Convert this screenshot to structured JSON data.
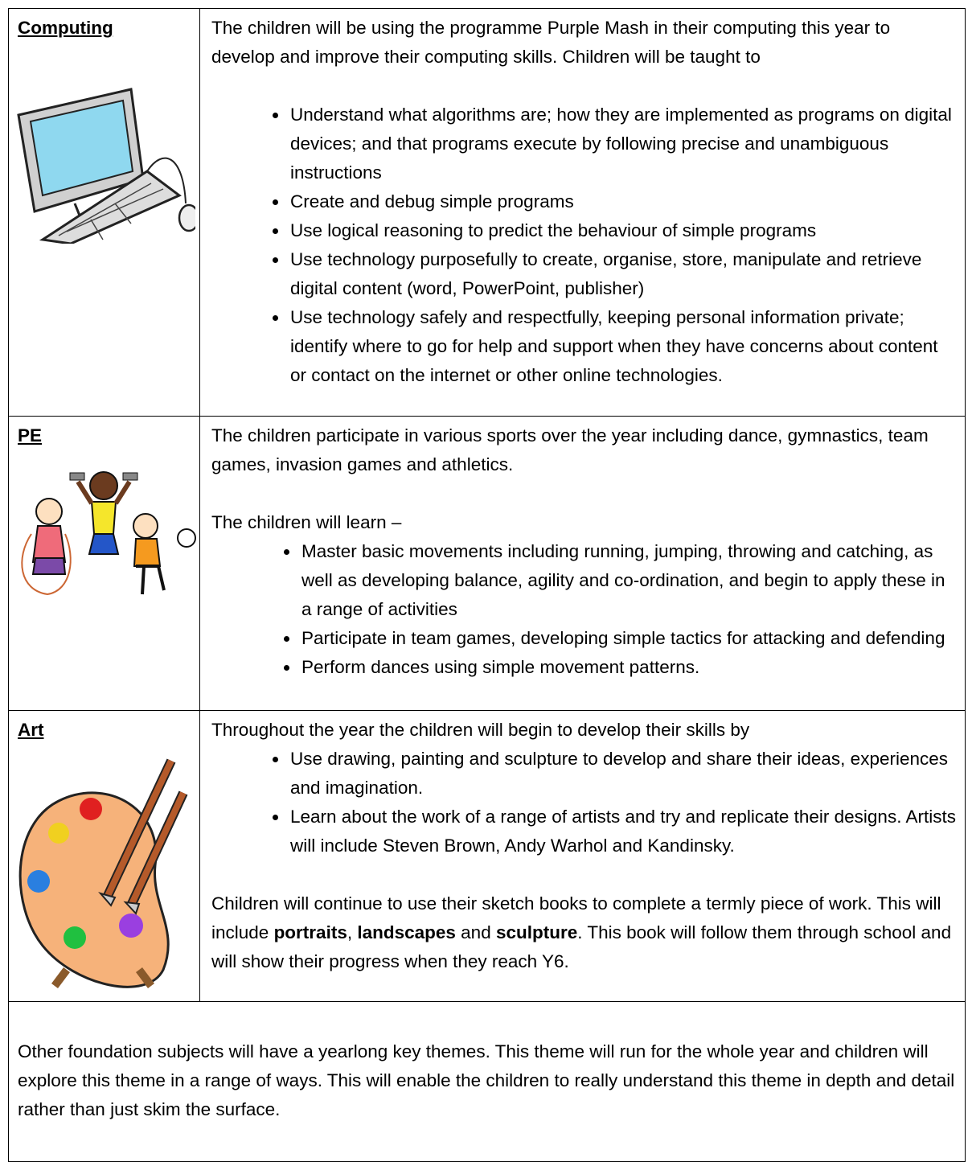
{
  "table": {
    "rows": [
      {
        "subject": "Computing",
        "intro": "The children will be using the programme Purple Mash in their computing this year to develop and improve their computing skills. Children will be taught to",
        "bullets": [
          "Understand what algorithms are; how they are implemented as programs on digital devices; and that programs execute by following precise and unambiguous instructions",
          "Create and debug simple programs",
          "Use logical reasoning to predict the behaviour of simple programs",
          "Use technology purposefully to create, organise, store, manipulate and retrieve digital content (word, PowerPoint, publisher)",
          "Use technology safely and respectfully, keeping personal information private; identify where to go for help and support when they have concerns about content or contact on the internet or other online technologies."
        ]
      },
      {
        "subject": "PE",
        "intro": "The children participate in various sports over the year including dance, gymnastics, team games, invasion games and athletics.",
        "lead": "The children will learn –",
        "bullets": [
          "Master basic movements including running, jumping, throwing and catching, as well as developing balance, agility and co-ordination, and begin to apply these in a range of activities",
          "Participate in team games, developing simple tactics for attacking and defending",
          "Perform dances using simple movement patterns."
        ]
      },
      {
        "subject": "Art",
        "intro": "Throughout the year the children will begin to develop their skills by",
        "bullets": [
          "Use drawing, painting and sculpture to develop and share their ideas, experiences and imagination.",
          "Learn about the work of a range of artists and try and replicate their designs.  Artists will include Steven Brown, Andy Warhol and Kandinsky."
        ],
        "closing": [
          "Children will continue to use their sketch books to complete a termly piece of work. This will include ",
          "portraits",
          ", ",
          "landscapes",
          " and ",
          "sculpture",
          ". This book will follow them through school and will show their progress when they reach Y6."
        ]
      }
    ]
  },
  "footer": {
    "text": "Other foundation subjects will have a yearlong key themes. This theme will run for the whole year and children will explore this theme in a range of ways. This will enable the children to really understand this theme in depth and detail rather than just skim the surface."
  }
}
